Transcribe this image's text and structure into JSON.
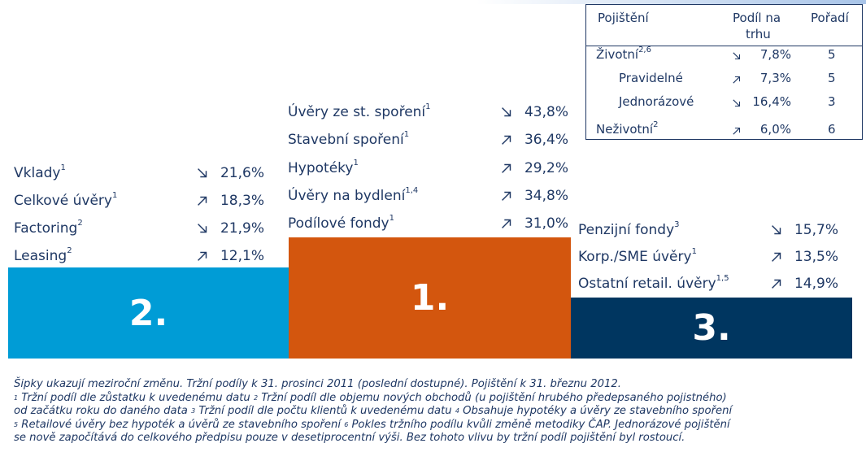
{
  "chart_data": {
    "type": "table",
    "podiums": [
      {
        "rank": "2.",
        "color": "#009cd6",
        "items": [
          {
            "label": "Vklady",
            "sup": "1",
            "trend": "down",
            "value": "21,6%"
          },
          {
            "label": "Celkové úvěry",
            "sup": "1",
            "trend": "up",
            "value": "18,3%"
          },
          {
            "label": "Factoring",
            "sup": "2",
            "trend": "down",
            "value": "21,9%"
          },
          {
            "label": "Leasing",
            "sup": "2",
            "trend": "up",
            "value": "12,1%"
          }
        ]
      },
      {
        "rank": "1.",
        "color": "#d3560e",
        "items": [
          {
            "label": "Úvěry ze st. spoření",
            "sup": "1",
            "trend": "down",
            "value": "43,8%"
          },
          {
            "label": "Stavební spoření",
            "sup": "1",
            "trend": "up",
            "value": "36,4%"
          },
          {
            "label": "Hypotéky",
            "sup": "1",
            "trend": "up",
            "value": "29,2%"
          },
          {
            "label": "Úvěry na bydlení",
            "sup": "1,4",
            "trend": "up",
            "value": "34,8%"
          },
          {
            "label": "Podílové fondy",
            "sup": "1",
            "trend": "up",
            "value": "31,0%"
          }
        ]
      },
      {
        "rank": "3.",
        "color": "#003660",
        "items": [
          {
            "label": "Penzijní fondy",
            "sup": "3",
            "trend": "down",
            "value": "15,7%"
          },
          {
            "label": "Korp./SME úvěry",
            "sup": "1",
            "trend": "up",
            "value": "13,5%"
          },
          {
            "label": "Ostatní retail. úvěry",
            "sup": "1,5",
            "trend": "up",
            "value": "14,9%"
          }
        ]
      }
    ],
    "insurance": {
      "headers": {
        "col1": "Pojištění",
        "col2a": "Podíl na",
        "col2b": "trhu",
        "col3": "Pořadí"
      },
      "rows": [
        {
          "label": "Životní",
          "sup": "2,6",
          "trend": "down",
          "value": "7,8%",
          "rank": "5"
        },
        {
          "label": "Pravidelné",
          "sup": "",
          "trend": "up",
          "value": "7,3%",
          "rank": "5"
        },
        {
          "label": "Jednorázové",
          "sup": "",
          "trend": "down",
          "value": "16,4%",
          "rank": "3"
        },
        {
          "label": "Neživotní",
          "sup": "2",
          "trend": "up",
          "value": "6,0%",
          "rank": "6"
        }
      ]
    }
  },
  "footnotes": {
    "l1": "Šipky ukazují meziroční změnu. Tržní podíly k 31. prosinci 2011 (poslední dostupné). Pojištění k 31. březnu 2012.",
    "n1": "1",
    "l2a": " Tržní podíl dle zůstatku k uvedenému datu  ",
    "n2": "2",
    "l2b": " Tržní podíl dle objemu nových obchodů (u pojištění hrubého předepsaného pojistného)",
    "l3a": "od začátku roku do daného data ",
    "n3": "3",
    "l3b": " Tržní podíl dle počtu klientů k uvedenému datu ",
    "n4": "4",
    "l3c": " Obsahuje hypotéky a úvěry ze stavebního spoření",
    "n5": "5",
    "l4a": " Retailové úvěry bez hypoték a úvěrů ze stavebního spoření ",
    "n6": "6",
    "l4b": " Pokles tržního podílu kvůli změně metodiky ČAP. Jednorázové pojištění",
    "l5": "se nově započítává do celkového předpisu pouze v desetiprocentní výši. Bez tohoto vlivu by tržní podíl pojištění byl rostoucí."
  }
}
